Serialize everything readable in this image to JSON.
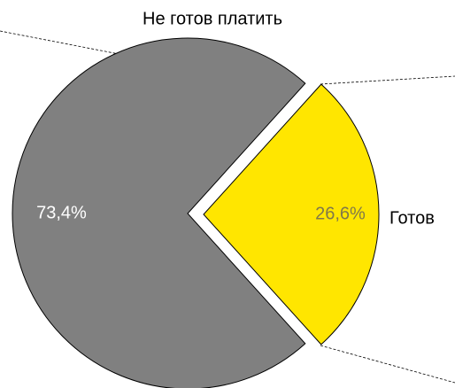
{
  "chart_data": {
    "type": "pie",
    "categories": [
      "Не готов платить",
      "Готов"
    ],
    "values": [
      73.4,
      26.6
    ],
    "value_labels": [
      "73,4%",
      "26,6%"
    ],
    "colors": [
      "#808080",
      "#ffe600"
    ]
  }
}
